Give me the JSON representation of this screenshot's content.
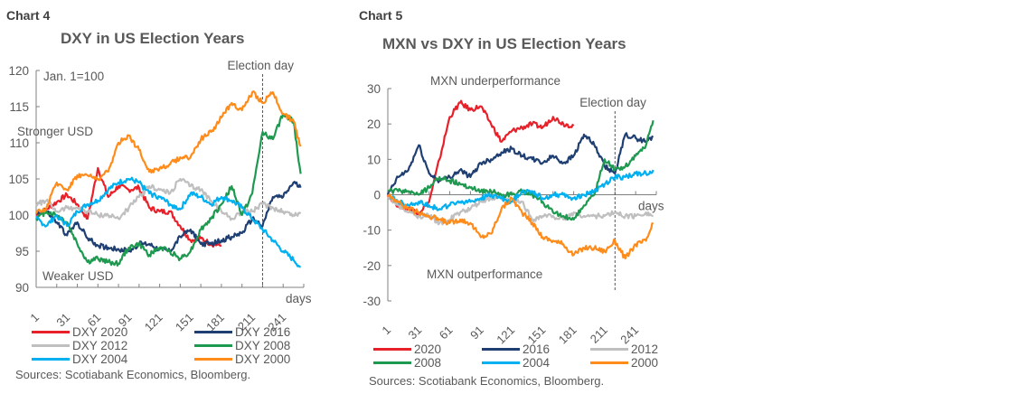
{
  "chart_data": [
    {
      "id": "chart4",
      "type": "line",
      "chart_number": "Chart 4",
      "title": "DXY in US Election Years",
      "xlabel": "days",
      "ylabel": "",
      "ylim": [
        90,
        120
      ],
      "xlim": [
        1,
        261
      ],
      "yticks": [
        90,
        95,
        100,
        105,
        110,
        115,
        120
      ],
      "xtick_labels": [
        "1",
        "31",
        "61",
        "91",
        "121",
        "151",
        "181",
        "211",
        "241"
      ],
      "annotations": {
        "base": "Jan. 1=100",
        "upper": "Stronger USD",
        "lower": "Weaker USD",
        "election": "Election day",
        "election_day": 221
      },
      "grid": false,
      "legend_position": "bottom",
      "x": [
        1,
        11,
        21,
        31,
        41,
        51,
        61,
        71,
        81,
        91,
        101,
        111,
        121,
        131,
        141,
        151,
        161,
        171,
        181,
        191,
        201,
        211,
        221,
        231,
        241,
        251,
        258
      ],
      "series": [
        {
          "name": "DXY 2020",
          "color": "#e8202a",
          "values": [
            100,
            100.8,
            101.8,
            102.8,
            101.5,
            99.5,
            106.5,
            102.5,
            104,
            103.5,
            103.8,
            101,
            100.5,
            100.5,
            98.5,
            96.5,
            96.8,
            96,
            95.8,
            null,
            null,
            null,
            null,
            null,
            null,
            null,
            null
          ]
        },
        {
          "name": "DXY 2016",
          "color": "#1f3f73",
          "values": [
            100.3,
            100.5,
            99,
            97.2,
            99,
            96.8,
            95.8,
            95.5,
            95.3,
            95,
            96,
            96,
            95.3,
            95,
            97,
            98,
            96,
            96,
            96.5,
            97,
            97.5,
            99.5,
            98.5,
            102.5,
            102.5,
            104.5,
            103.8
          ]
        },
        {
          "name": "DXY 2012",
          "color": "#bfbfbf",
          "values": [
            101.5,
            102,
            100.5,
            101,
            101,
            100.5,
            100,
            100,
            99.5,
            101,
            102.5,
            104,
            103.5,
            103,
            105,
            104,
            103.5,
            102,
            100.5,
            99.5,
            100.5,
            100.5,
            101.5,
            101,
            100.5,
            100,
            100.2
          ]
        },
        {
          "name": "DXY 2008",
          "color": "#1e9a50",
          "values": [
            99.5,
            100.5,
            100,
            99,
            96,
            93.5,
            94,
            93.5,
            93.3,
            95.5,
            96,
            94.5,
            95.5,
            95,
            94,
            95,
            98,
            99.5,
            101.5,
            104,
            100,
            103,
            111.5,
            110.5,
            114,
            113,
            105.7
          ]
        },
        {
          "name": "DXY 2004",
          "color": "#00b0f0",
          "values": [
            99.5,
            98.5,
            100,
            98.5,
            100.5,
            101.5,
            102,
            103.5,
            104.5,
            105,
            104.5,
            103,
            102.5,
            101.5,
            100.8,
            103,
            102.5,
            101.5,
            102.5,
            102,
            101,
            99.5,
            98,
            96.5,
            95,
            93.8,
            92.8
          ]
        },
        {
          "name": "DXY 2000",
          "color": "#ff8c1a",
          "values": [
            100.2,
            101,
            104.5,
            103.5,
            105.5,
            105.5,
            105,
            106,
            110,
            111,
            109,
            106,
            106.5,
            107,
            108,
            108,
            110.5,
            111.5,
            113.5,
            115.5,
            114.5,
            117,
            115.5,
            117,
            114,
            113,
            109.5
          ]
        }
      ],
      "source": "Sources: Scotiabank Economics, Bloomberg."
    },
    {
      "id": "chart5",
      "type": "line",
      "chart_number": "Chart 5",
      "title": "MXN vs DXY in US Election Years",
      "xlabel": "days",
      "ylabel": "",
      "ylim": [
        -30,
        30
      ],
      "xlim": [
        1,
        261
      ],
      "yticks": [
        -30,
        -20,
        -10,
        0,
        10,
        20,
        30
      ],
      "xtick_labels": [
        "1",
        "31",
        "61",
        "91",
        "121",
        "151",
        "181",
        "211",
        "241"
      ],
      "annotations": {
        "upper": "MXN  underperformance",
        "lower": "MXN  outperformance",
        "election": "Election day",
        "election_day": 221
      },
      "grid": false,
      "legend_position": "bottom",
      "x": [
        1,
        11,
        21,
        31,
        41,
        51,
        61,
        71,
        81,
        91,
        101,
        111,
        121,
        131,
        141,
        151,
        161,
        171,
        181,
        191,
        201,
        211,
        221,
        231,
        241,
        251,
        258
      ],
      "series": [
        {
          "name": "2020",
          "color": "#e8202a",
          "values": [
            0,
            -3,
            -4,
            -5,
            -2,
            10,
            22,
            26,
            24,
            25,
            20,
            15,
            18,
            19,
            20,
            19,
            22,
            20,
            19.5,
            null,
            null,
            null,
            null,
            null,
            null,
            null,
            null
          ]
        },
        {
          "name": "2016",
          "color": "#1f3f73",
          "values": [
            0,
            5,
            7,
            14,
            6,
            4,
            5,
            7,
            5,
            9,
            10,
            12,
            13,
            11,
            10,
            9,
            11,
            9,
            11,
            17,
            14,
            8,
            6,
            17,
            16,
            15,
            16.5
          ]
        },
        {
          "name": "2012",
          "color": "#bfbfbf",
          "values": [
            -1,
            -3,
            -5,
            -6,
            -6,
            -8,
            -7,
            -5,
            -4,
            -2,
            -1,
            -1,
            -2,
            -2,
            -7,
            -6,
            -6,
            -7,
            -5,
            -6,
            -6,
            -6,
            -5,
            -6,
            -6,
            -5,
            -6
          ]
        },
        {
          "name": "2008",
          "color": "#1e9a50",
          "values": [
            1,
            1,
            1,
            0,
            2,
            5,
            4,
            3,
            2,
            1,
            1,
            0,
            0,
            1,
            0,
            -2,
            -5,
            -6,
            -7,
            -3,
            0,
            10,
            7,
            8,
            11,
            14,
            21
          ]
        },
        {
          "name": "2004",
          "color": "#00b0f0",
          "values": [
            0,
            -2,
            -3,
            -2,
            -3,
            -4,
            -3,
            -2,
            -2,
            -1,
            0,
            -1,
            -2,
            1,
            1,
            -1,
            0,
            0,
            -1,
            0,
            1,
            3,
            5,
            5,
            6,
            6,
            7
          ]
        },
        {
          "name": "2000",
          "color": "#ff8c1a",
          "values": [
            0,
            -2,
            -4,
            -5,
            -6,
            -7,
            -8,
            -7,
            -8,
            -12,
            -11,
            -4,
            -1,
            -5,
            -8,
            -12,
            -13,
            -14,
            -17,
            -15,
            -15,
            -16,
            -13,
            -18,
            -14,
            -13,
            -8
          ]
        }
      ],
      "source": "Sources: Scotiabank Economics, Bloomberg."
    }
  ]
}
